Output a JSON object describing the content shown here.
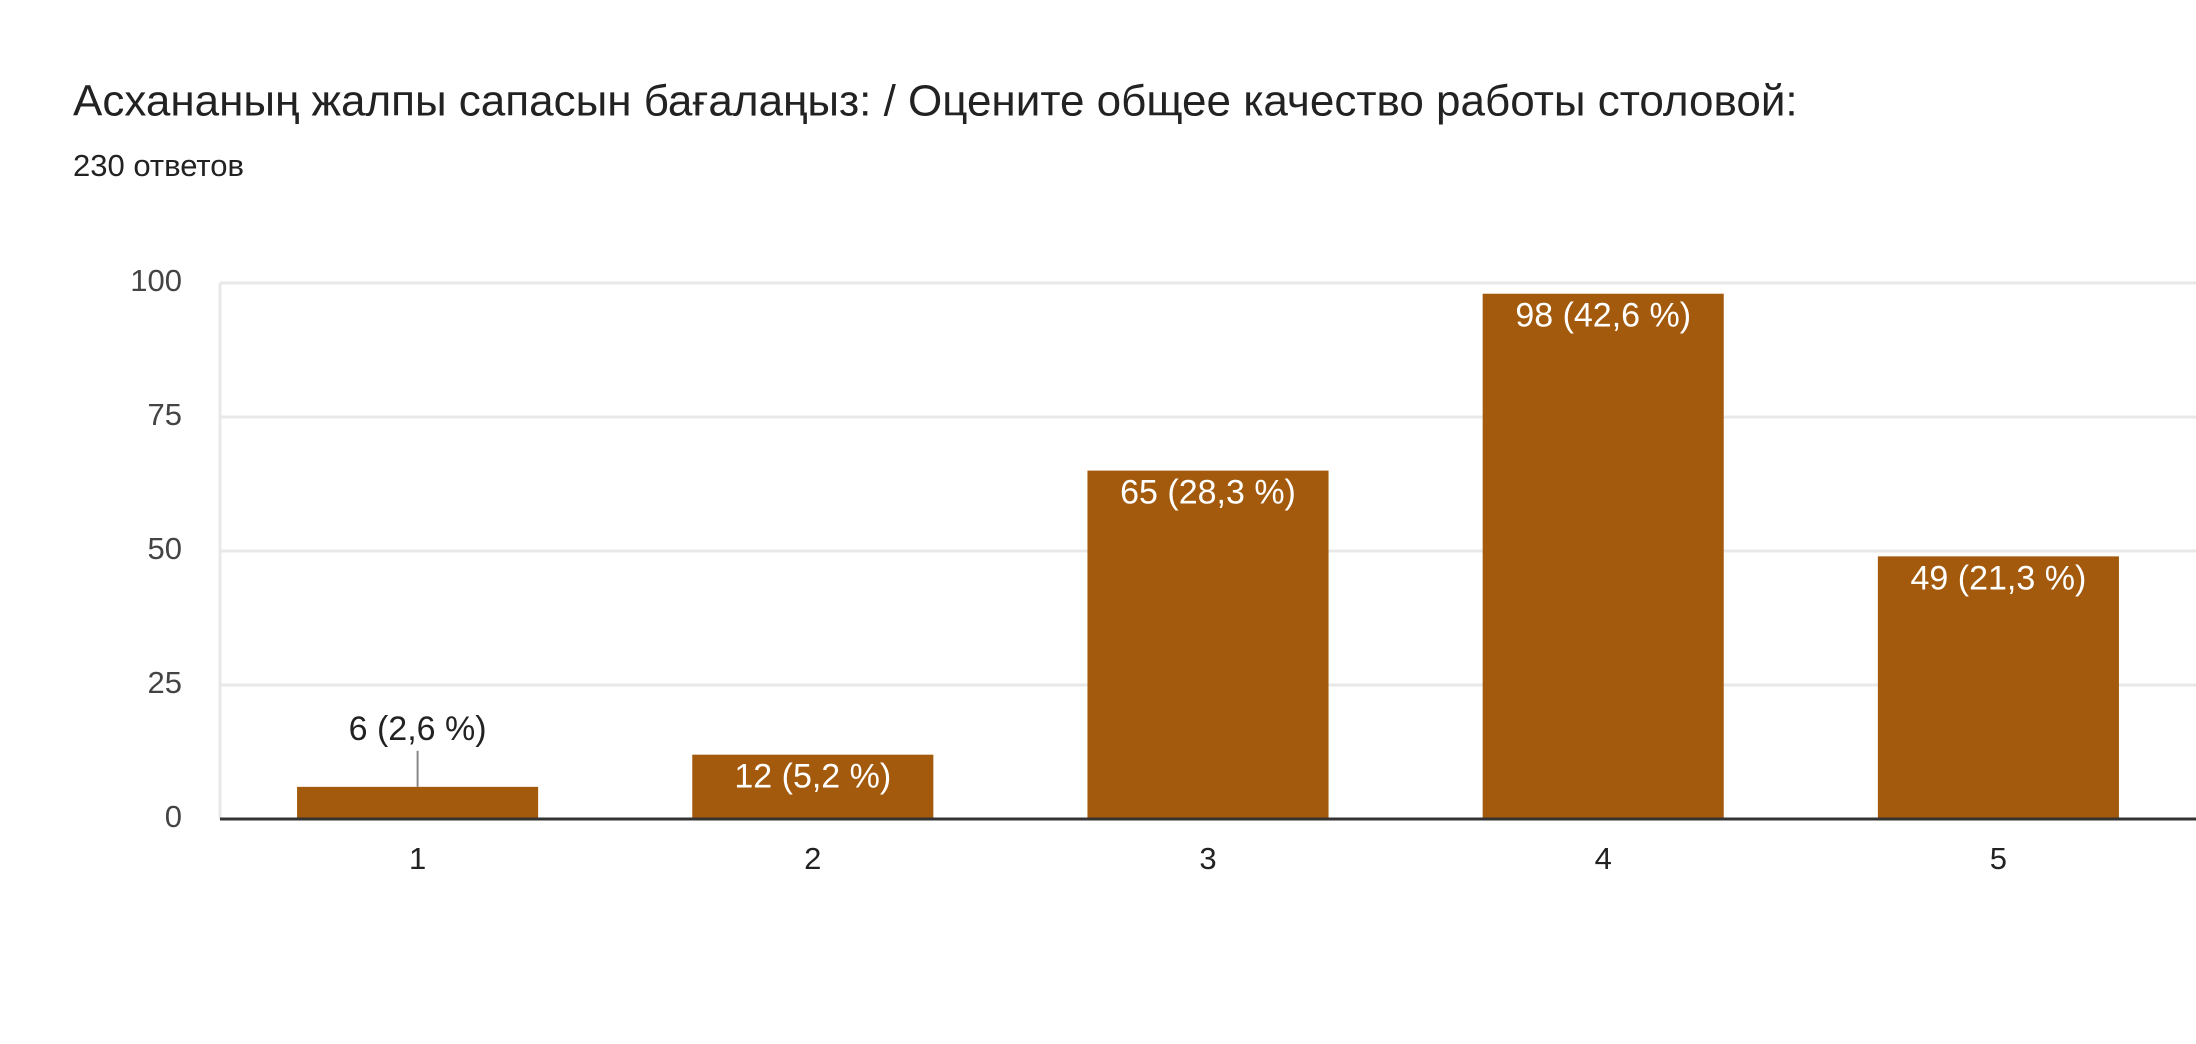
{
  "chart_data": {
    "type": "bar",
    "title": "Асхананың жалпы сапасын бағалаңыз: / Оцените общее качество работы столовой:",
    "subtitle": "230 ответов",
    "categories": [
      "1",
      "2",
      "3",
      "4",
      "5"
    ],
    "values": [
      6,
      12,
      65,
      98,
      49
    ],
    "value_labels": [
      "6 (2,6 %)",
      "12 (5,2 %)",
      "65 (28,3 %)",
      "98 (42,6 %)",
      "49 (21,3 %)"
    ],
    "color": "#a35a0c",
    "ylim": [
      0,
      100
    ],
    "yticks": [
      0,
      25,
      50,
      75,
      100
    ],
    "grid": true
  }
}
